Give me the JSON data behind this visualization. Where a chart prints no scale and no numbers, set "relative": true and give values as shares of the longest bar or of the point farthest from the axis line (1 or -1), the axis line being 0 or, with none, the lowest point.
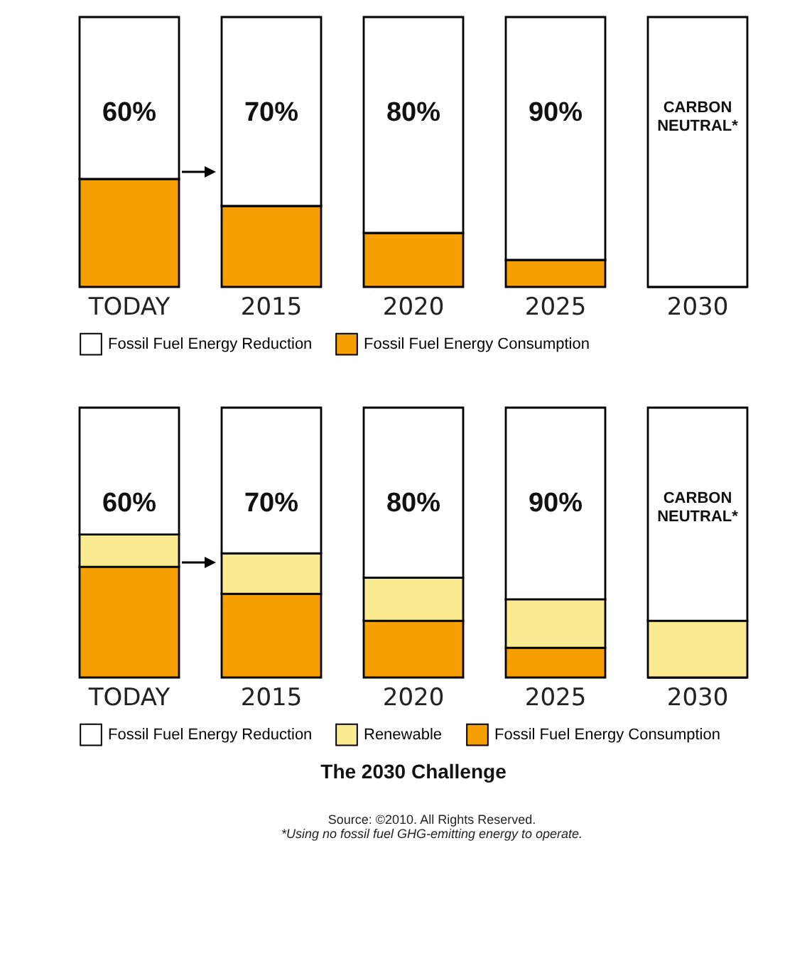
{
  "chart_data": [
    {
      "type": "bar",
      "stacked": true,
      "categories": [
        "TODAY",
        "2015",
        "2020",
        "2025",
        "2030"
      ],
      "ylim": [
        0,
        100
      ],
      "tick_labels": "x",
      "legend": "bottom",
      "series": [
        {
          "name": "Fossil Fuel Energy Consumption",
          "color": "#f5a000",
          "values": [
            40,
            30,
            20,
            10,
            0
          ]
        },
        {
          "name": "Fossil Fuel Energy Reduction",
          "color": "#ffffff",
          "values": [
            60,
            70,
            80,
            90,
            100
          ],
          "value_labels": [
            "60%",
            "70%",
            "80%",
            "90%",
            "CARBON NEUTRAL*"
          ]
        }
      ]
    },
    {
      "type": "bar",
      "stacked": true,
      "relative": true,
      "categories": [
        "TODAY",
        "2015",
        "2020",
        "2025",
        "2030"
      ],
      "legend": "bottom",
      "title": "The 2030 Challenge",
      "annotations": [
        "60%",
        "70%",
        "80%",
        "90%",
        "CARBON NEUTRAL*",
        "Source: ©2010. All Rights Reserved.",
        "*Using no fossil fuel GHG-emitting energy to operate."
      ],
      "series": [
        {
          "name": "Fossil Fuel Energy Consumption",
          "color": "#f5a000",
          "values": [
            0.41,
            0.31,
            0.21,
            0.11,
            0
          ]
        },
        {
          "name": "Renewable",
          "color": "#fbeb90",
          "values": [
            0.12,
            0.15,
            0.16,
            0.18,
            0.21
          ]
        },
        {
          "name": "Fossil Fuel Energy Reduction",
          "color": "#ffffff",
          "values": [
            0.47,
            0.54,
            0.63,
            0.71,
            0.79
          ]
        }
      ]
    }
  ]
}
